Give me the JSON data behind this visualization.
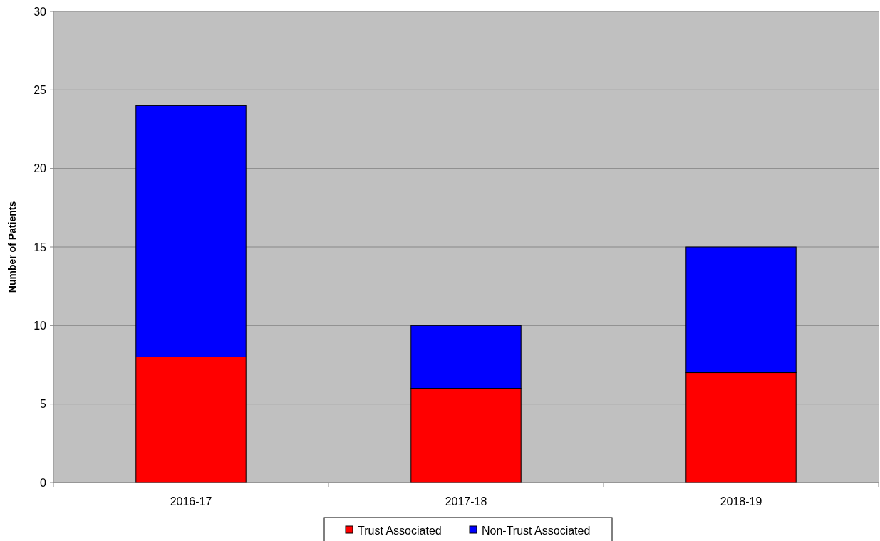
{
  "chart_data": {
    "type": "bar",
    "stacked": true,
    "ylabel": "Number of Patients",
    "categories": [
      "2016-17",
      "2017-18",
      "2018-19"
    ],
    "series": [
      {
        "name": "Trust Associated",
        "color": "#ff0000",
        "values": [
          8,
          6,
          7
        ]
      },
      {
        "name": "Non-Trust Associated",
        "color": "#0000ff",
        "values": [
          16,
          4,
          8
        ]
      }
    ],
    "ylim": [
      0,
      30
    ],
    "yticks": [
      0,
      5,
      10,
      15,
      20,
      25,
      30
    ],
    "grid": "y",
    "legend": "bottom"
  }
}
